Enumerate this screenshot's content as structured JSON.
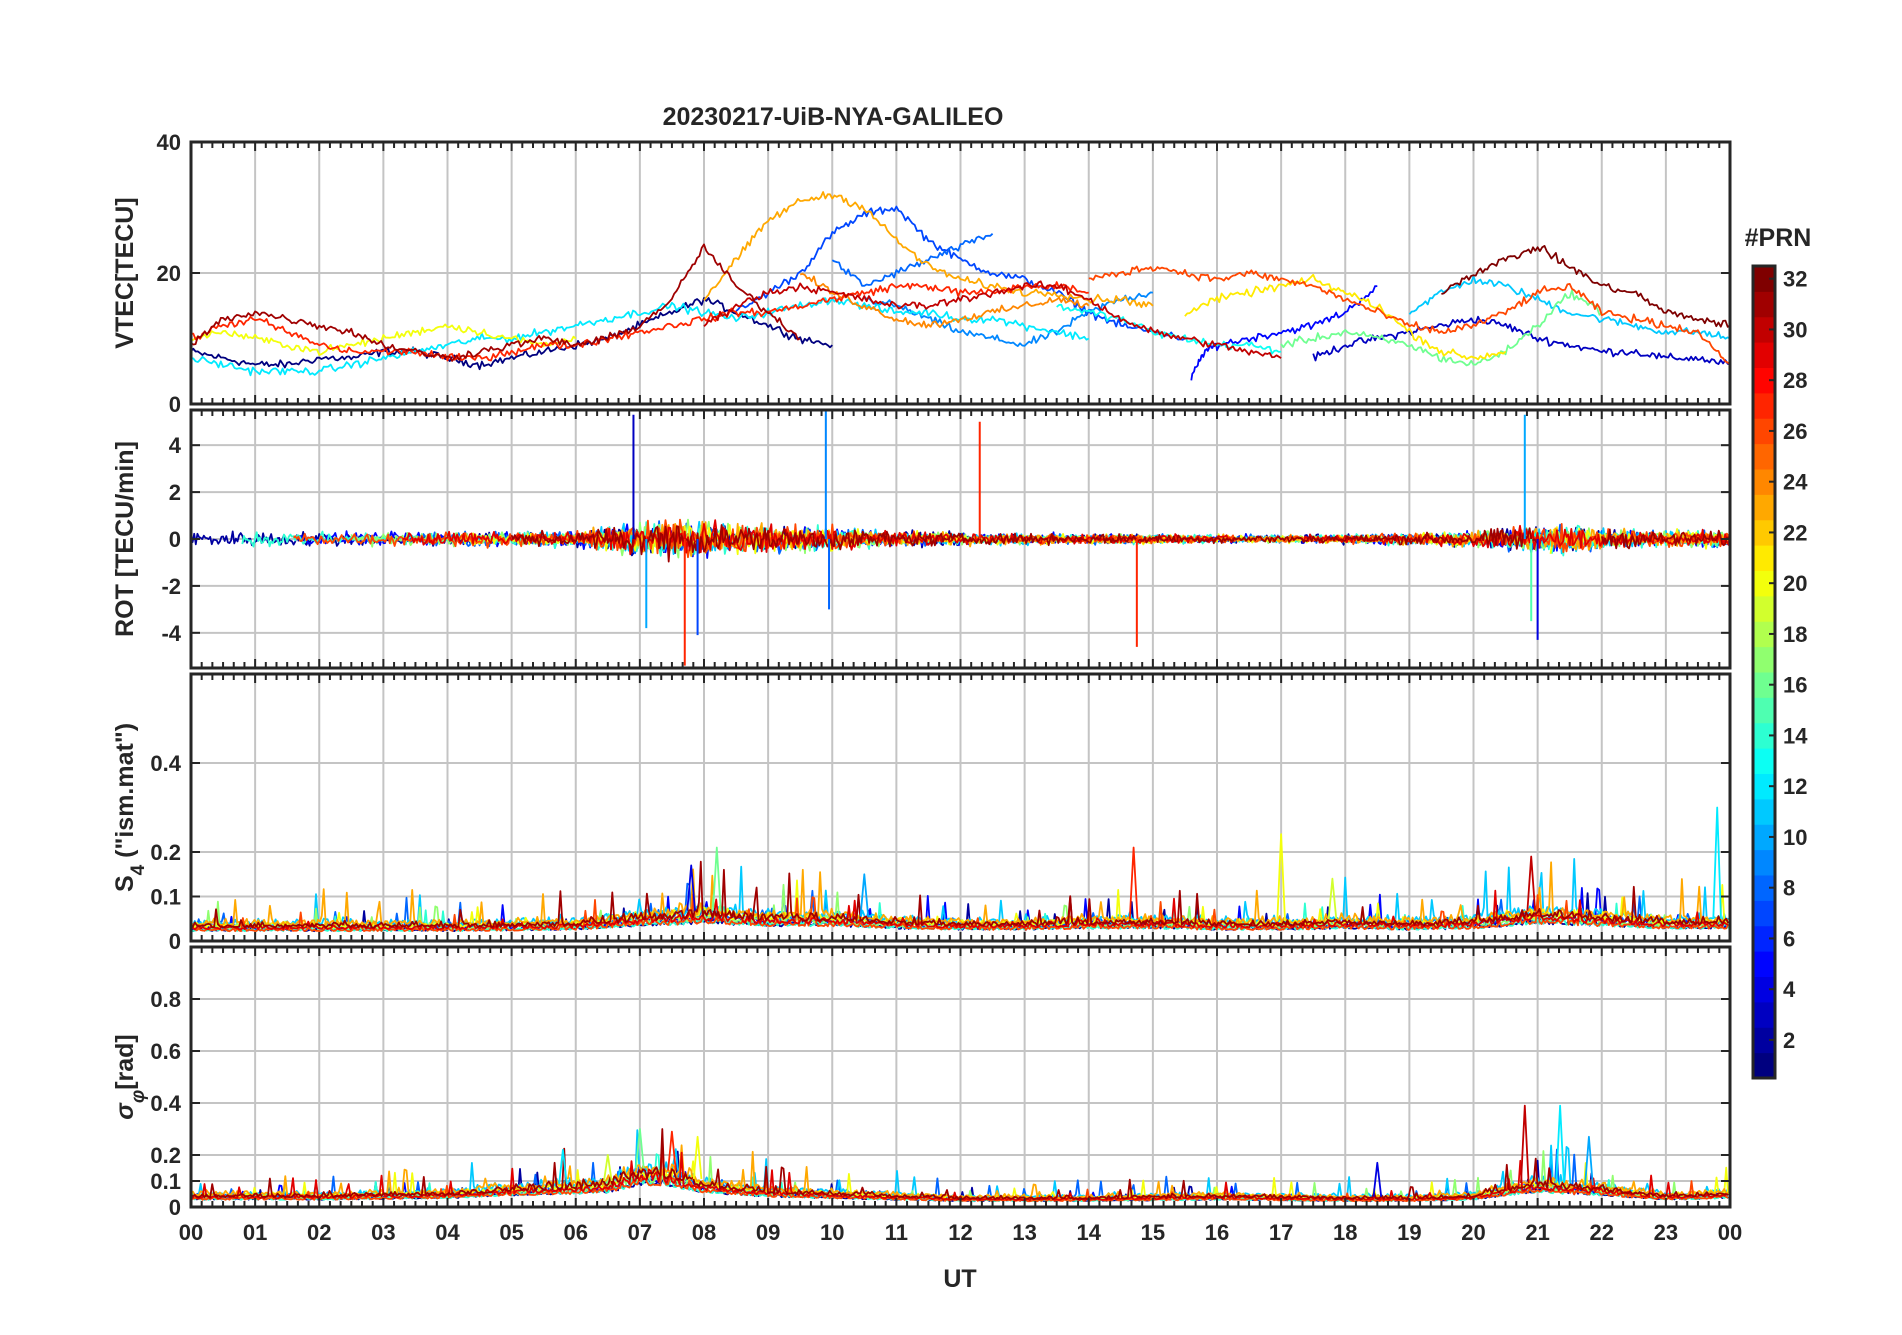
{
  "chart_data": {
    "type": "line",
    "title": "20230217-UiB-NYA-GALILEO",
    "xlabel": "UT",
    "x_range_hours": [
      0,
      24
    ],
    "x_tick_labels": [
      "00",
      "01",
      "02",
      "03",
      "04",
      "05",
      "06",
      "07",
      "08",
      "09",
      "10",
      "11",
      "12",
      "13",
      "14",
      "15",
      "16",
      "17",
      "18",
      "19",
      "20",
      "21",
      "22",
      "23",
      "00"
    ],
    "grid": true,
    "colorbar": {
      "label": "#PRN",
      "range": [
        1,
        32
      ],
      "tick_labels": [
        "2",
        "4",
        "6",
        "8",
        "10",
        "12",
        "14",
        "16",
        "18",
        "20",
        "22",
        "24",
        "26",
        "28",
        "30",
        "32"
      ],
      "colormap": "jet",
      "stops": [
        "#00007f",
        "#0000ff",
        "#007fff",
        "#00ffff",
        "#7fff7f",
        "#ffff00",
        "#ff7f00",
        "#ff0000",
        "#7f0000"
      ]
    },
    "panels": [
      {
        "id": "vtec",
        "ylabel": "VTEC[TECU]",
        "ylim": [
          0,
          40
        ],
        "y_ticks": [
          0,
          20,
          40
        ],
        "y_tick_labels": [
          "0",
          "20",
          "40"
        ],
        "series": [
          {
            "prn": 1,
            "x": [
              0,
              0.5,
              1,
              1.5,
              2,
              2.5,
              3,
              3.5,
              4,
              4.5,
              5,
              5.5,
              6,
              6.5,
              7,
              7.5,
              8,
              8.5,
              9,
              9.5,
              10
            ],
            "y": [
              8,
              7,
              6,
              6,
              7,
              7,
              8,
              8,
              7,
              6,
              7,
              8,
              9,
              10,
              12,
              14,
              16,
              14,
              12,
              10,
              9
            ]
          },
          {
            "prn": 3,
            "x": [
              17.5,
              18,
              18.5,
              19,
              19.5,
              20,
              20.5,
              21,
              21.5,
              22,
              22.5,
              23,
              23.5,
              24
            ],
            "y": [
              7,
              9,
              10,
              11,
              12,
              13,
              12,
              10,
              9,
              8,
              8,
              7,
              7,
              6
            ]
          },
          {
            "prn": 5,
            "x": [
              15.6,
              15.8,
              16,
              16.5,
              17,
              17.5,
              18,
              18.5
            ],
            "y": [
              4,
              8,
              9,
              10,
              11,
              12,
              14,
              18
            ]
          },
          {
            "prn": 7,
            "x": [
              8.5,
              9,
              9.5,
              10,
              10.5,
              11,
              11.5,
              12,
              12.5,
              13,
              13.5,
              14,
              14.5,
              15,
              15.5
            ],
            "y": [
              14,
              17,
              20,
              26,
              29,
              30,
              25,
              22,
              20,
              19,
              17,
              14,
              12,
              11,
              10
            ]
          },
          {
            "prn": 8,
            "x": [
              10,
              10.5,
              11,
              11.5,
              12,
              12.5
            ],
            "y": [
              22,
              18,
              20,
              22,
              24,
              26
            ]
          },
          {
            "prn": 9,
            "x": [
              10.5,
              11,
              11.5,
              12,
              12.5,
              13,
              13.5,
              14,
              14.5,
              15
            ],
            "y": [
              16,
              15,
              13,
              11,
              10,
              9,
              11,
              14,
              16,
              17
            ]
          },
          {
            "prn": 11,
            "x": [
              19,
              19.5,
              20,
              20.5,
              21,
              21.5,
              22,
              22.5,
              23,
              23.5,
              24
            ],
            "y": [
              14,
              17,
              19,
              18,
              16,
              14,
              13,
              12,
              11,
              11,
              10
            ]
          },
          {
            "prn": 12,
            "x": [
              0,
              0.5,
              1,
              1.5,
              2,
              2.5,
              3,
              3.5,
              4,
              4.5,
              5,
              5.5,
              6,
              6.5,
              7,
              7.5,
              8,
              8.5,
              9,
              9.5,
              10,
              10.5,
              11,
              11.5,
              12,
              12.5,
              13,
              13.5,
              14
            ],
            "y": [
              7,
              6,
              5,
              5,
              5,
              6,
              7,
              8,
              9,
              10,
              10,
              11,
              12,
              13,
              14,
              15,
              14,
              13,
              14,
              15,
              16,
              15,
              14,
              14,
              13,
              13,
              12,
              11,
              10
            ]
          },
          {
            "prn": 13,
            "x": [
              13.5,
              14,
              14.5,
              15,
              15.5,
              16,
              16.5,
              17
            ],
            "y": [
              15,
              14,
              13,
              11,
              10,
              9,
              9,
              8
            ]
          },
          {
            "prn": 16,
            "x": [
              17,
              17.5,
              18,
              18.5,
              19,
              19.5,
              20,
              20.5,
              21,
              21.5,
              22
            ],
            "y": [
              9,
              10,
              11,
              10,
              9,
              7,
              6,
              8,
              12,
              17,
              14
            ]
          },
          {
            "prn": 20,
            "x": [
              0,
              0.5,
              1,
              1.5,
              2,
              2.5,
              3,
              3.5,
              4,
              4.5,
              5,
              5.5,
              6
            ],
            "y": [
              10,
              11,
              10,
              9,
              8,
              9,
              10,
              11,
              12,
              11,
              10,
              9,
              10
            ]
          },
          {
            "prn": 21,
            "x": [
              15.5,
              16,
              16.5,
              17,
              17.5,
              18,
              18.5,
              19,
              19.5,
              20,
              20.5
            ],
            "y": [
              14,
              16,
              17,
              18,
              19,
              17,
              15,
              11,
              8,
              7,
              8
            ]
          },
          {
            "prn": 23,
            "x": [
              8,
              8.5,
              9,
              9.5,
              10,
              10.5,
              11,
              11.5,
              12,
              12.5,
              13,
              13.5,
              14,
              14.5,
              15
            ],
            "y": [
              16,
              22,
              28,
              31,
              32,
              30,
              25,
              21,
              19,
              18,
              17,
              17,
              16,
              16,
              15
            ]
          },
          {
            "prn": 24,
            "x": [
              9.5,
              10,
              10.5,
              11,
              11.5,
              12,
              12.5,
              13,
              13.5,
              14
            ],
            "y": [
              20,
              17,
              15,
              13,
              12,
              13,
              14,
              15,
              16,
              15
            ]
          },
          {
            "prn": 26,
            "x": [
              14,
              14.5,
              15,
              15.5,
              16,
              16.5,
              17,
              17.5,
              18,
              18.5,
              19,
              19.5,
              20,
              20.5,
              21,
              21.5,
              22,
              22.5,
              23,
              23.5,
              24
            ],
            "y": [
              19,
              20,
              21,
              20,
              19,
              20,
              19,
              18,
              16,
              14,
              12,
              11,
              12,
              14,
              17,
              18,
              14,
              13,
              12,
              11,
              6
            ]
          },
          {
            "prn": 27,
            "x": [
              0,
              0.5,
              1,
              1.5,
              2,
              2.5,
              3,
              3.5,
              4,
              4.5,
              5,
              5.5,
              6,
              6.5,
              7,
              7.5,
              8,
              8.5,
              9,
              9.5,
              10,
              10.5,
              11,
              11.5,
              12,
              12.5,
              13,
              13.5,
              14
            ],
            "y": [
              10,
              12,
              13,
              11,
              9,
              8,
              8,
              8,
              7,
              7,
              8,
              9,
              9,
              10,
              11,
              12,
              13,
              14,
              14,
              15,
              16,
              17,
              18,
              18,
              17,
              17,
              18,
              18,
              17
            ]
          },
          {
            "prn": 30,
            "x": [
              8,
              8.5,
              9,
              9.5,
              10,
              10.5,
              11,
              11.5,
              12,
              12.5,
              13,
              13.5,
              14,
              14.5,
              15,
              15.5,
              16,
              16.5,
              17
            ],
            "y": [
              12,
              15,
              17,
              18,
              17,
              16,
              15,
              15,
              16,
              17,
              18,
              18,
              16,
              13,
              11,
              10,
              9,
              8,
              7
            ]
          },
          {
            "prn": 31,
            "x": [
              0,
              0.5,
              1,
              1.5,
              2,
              2.5,
              3,
              3.5,
              4,
              4.5,
              5,
              5.5,
              6,
              6.5,
              7,
              7.5,
              8,
              8.5,
              9,
              9.5
            ],
            "y": [
              9,
              13,
              14,
              13,
              12,
              11,
              9,
              8,
              7,
              8,
              9,
              10,
              9,
              10,
              12,
              16,
              24,
              18,
              14,
              10
            ]
          },
          {
            "prn": 32,
            "x": [
              19.5,
              20,
              20.5,
              21,
              21.5,
              22,
              22.5,
              23,
              23.5,
              24
            ],
            "y": [
              17,
              20,
              22,
              24,
              21,
              18,
              17,
              14,
              13,
              12
            ]
          }
        ]
      },
      {
        "id": "rot",
        "ylabel": "ROT [TECU/min]",
        "ylim": [
          -5.5,
          5.5
        ],
        "y_ticks": [
          -4,
          -2,
          0,
          2,
          4
        ],
        "y_tick_labels": [
          "-4",
          "-2",
          "0",
          "2",
          "4"
        ],
        "noise_profile": {
          "hours": [
            0,
            1,
            2,
            3,
            4,
            5,
            6,
            6.5,
            7,
            7.5,
            8,
            8.5,
            9,
            9.5,
            10,
            10.5,
            11,
            12,
            13,
            14,
            15,
            16,
            17,
            18,
            19,
            20,
            20.5,
            21,
            21.5,
            22,
            23,
            24
          ],
          "amplitude": [
            1.1,
            1.0,
            0.9,
            0.8,
            0.9,
            0.9,
            1.0,
            1.5,
            2.2,
            2.4,
            2.2,
            1.9,
            1.6,
            1.6,
            1.5,
            1.2,
            1.0,
            0.8,
            0.7,
            0.6,
            0.6,
            0.5,
            0.5,
            0.6,
            0.7,
            1.0,
            1.5,
            1.8,
            1.6,
            1.3,
            1.0,
            1.0
          ]
        },
        "spikes": [
          [
            6.9,
            5.3
          ],
          [
            7.1,
            -3.8
          ],
          [
            7.7,
            -5.4
          ],
          [
            7.9,
            -4.1
          ],
          [
            9.9,
            5.5
          ],
          [
            9.95,
            -3.0
          ],
          [
            12.3,
            5.0
          ],
          [
            14.75,
            -4.6
          ],
          [
            20.8,
            5.3
          ],
          [
            20.9,
            -3.5
          ],
          [
            21.0,
            -4.3
          ]
        ]
      },
      {
        "id": "s4",
        "ylabel": "S4 (\"ism.mat\")",
        "ylabel_main": "S",
        "ylabel_sub": "4",
        "ylabel_rest": " (\"ism.mat\")",
        "ylim": [
          0,
          0.6
        ],
        "y_ticks": [
          0,
          0.1,
          0.2,
          0.4
        ],
        "y_tick_labels": [
          "0",
          "0.1",
          "0.2",
          "0.4"
        ],
        "noise_profile": {
          "hours": [
            0,
            2,
            4,
            6,
            7,
            8,
            9,
            10,
            11,
            12,
            13,
            14,
            15,
            16,
            17,
            18,
            19,
            20,
            21,
            22,
            23,
            24
          ],
          "base": [
            0.04,
            0.04,
            0.04,
            0.045,
            0.06,
            0.07,
            0.06,
            0.06,
            0.05,
            0.045,
            0.045,
            0.05,
            0.05,
            0.045,
            0.045,
            0.05,
            0.045,
            0.05,
            0.07,
            0.06,
            0.05,
            0.05
          ]
        },
        "spikes": [
          [
            8.2,
            0.21
          ],
          [
            14.7,
            0.21
          ],
          [
            17.0,
            0.24
          ],
          [
            20.9,
            0.19
          ],
          [
            23.8,
            0.3
          ],
          [
            10.5,
            0.15
          ],
          [
            7.8,
            0.17
          ],
          [
            17.8,
            0.14
          ]
        ]
      },
      {
        "id": "sigma",
        "ylabel": "σφ[rad]",
        "ylabel_main": "σ",
        "ylabel_sub": "φ",
        "ylabel_rest": "[rad]",
        "ylim": [
          0,
          1
        ],
        "y_ticks": [
          0,
          0.1,
          0.2,
          0.4,
          0.6,
          0.8
        ],
        "y_tick_labels": [
          "0",
          "0.1",
          "0.2",
          "0.4",
          "0.6",
          "0.8"
        ],
        "noise_profile": {
          "hours": [
            0,
            2,
            4,
            5,
            6,
            6.5,
            7,
            7.5,
            8,
            9,
            10,
            11,
            12,
            14,
            16,
            18,
            19,
            20,
            20.5,
            21,
            21.5,
            22,
            23,
            24
          ],
          "base": [
            0.05,
            0.05,
            0.06,
            0.08,
            0.09,
            0.1,
            0.15,
            0.14,
            0.1,
            0.07,
            0.06,
            0.05,
            0.04,
            0.04,
            0.05,
            0.04,
            0.04,
            0.05,
            0.08,
            0.1,
            0.09,
            0.08,
            0.05,
            0.06
          ]
        },
        "spikes": [
          [
            7.0,
            0.3
          ],
          [
            7.5,
            0.29
          ],
          [
            7.9,
            0.27
          ],
          [
            20.8,
            0.39
          ],
          [
            21.35,
            0.39
          ],
          [
            21.8,
            0.27
          ],
          [
            18.5,
            0.17
          ],
          [
            6.5,
            0.2
          ],
          [
            5.8,
            0.22
          ]
        ]
      }
    ]
  }
}
